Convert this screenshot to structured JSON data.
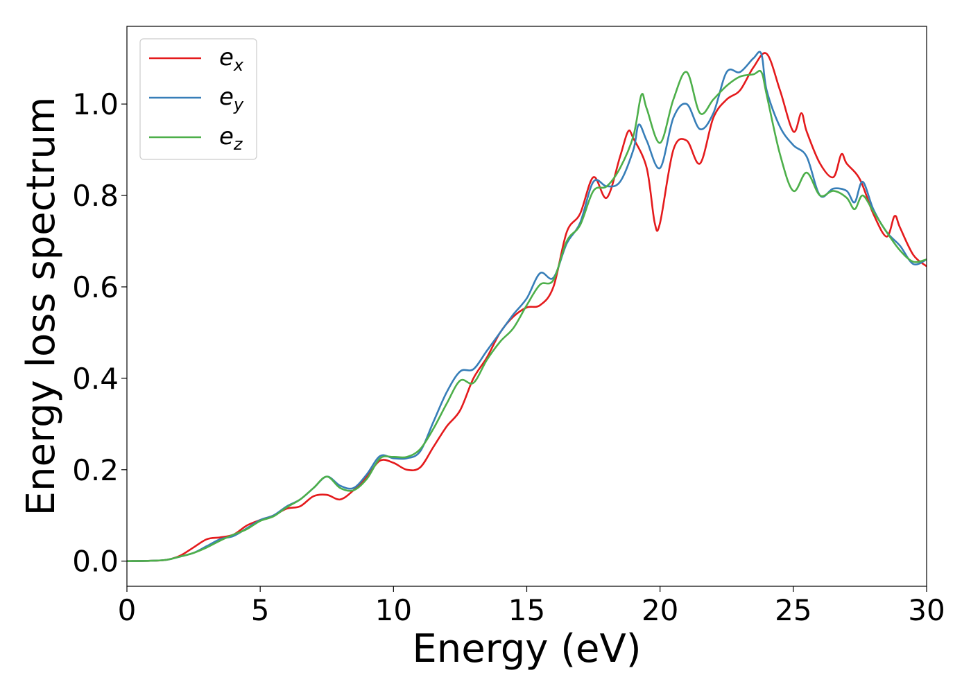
{
  "chart_data": {
    "type": "line",
    "xlabel": "Energy (eV)",
    "ylabel": "Energy loss spectrum",
    "xlim": [
      0,
      30
    ],
    "ylim": [
      -0.055,
      1.17
    ],
    "xticks": [
      "0",
      "5",
      "10",
      "15",
      "20",
      "25",
      "30"
    ],
    "xtick_values": [
      0,
      5,
      10,
      15,
      20,
      25,
      30
    ],
    "yticks": [
      "0.0",
      "0.2",
      "0.4",
      "0.6",
      "0.8",
      "1.0"
    ],
    "ytick_values": [
      0.0,
      0.2,
      0.4,
      0.6,
      0.8,
      1.0
    ],
    "grid": false,
    "legend_position": "top-left",
    "series": [
      {
        "name": "e_x",
        "legend_base": "e",
        "legend_sub": "x",
        "color": "#e41a1c",
        "points": [
          [
            0,
            0
          ],
          [
            1,
            0.001
          ],
          [
            1.5,
            0.003
          ],
          [
            2,
            0.012
          ],
          [
            2.5,
            0.03
          ],
          [
            3,
            0.048
          ],
          [
            3.5,
            0.052
          ],
          [
            4,
            0.058
          ],
          [
            4.5,
            0.078
          ],
          [
            5,
            0.09
          ],
          [
            5.5,
            0.1
          ],
          [
            6,
            0.115
          ],
          [
            6.5,
            0.12
          ],
          [
            7,
            0.142
          ],
          [
            7.5,
            0.145
          ],
          [
            8,
            0.135
          ],
          [
            8.5,
            0.155
          ],
          [
            9,
            0.185
          ],
          [
            9.5,
            0.22
          ],
          [
            10,
            0.215
          ],
          [
            10.5,
            0.2
          ],
          [
            11,
            0.205
          ],
          [
            11.5,
            0.25
          ],
          [
            12,
            0.295
          ],
          [
            12.5,
            0.33
          ],
          [
            13,
            0.4
          ],
          [
            13.5,
            0.445
          ],
          [
            14,
            0.5
          ],
          [
            14.5,
            0.535
          ],
          [
            15,
            0.555
          ],
          [
            15.5,
            0.56
          ],
          [
            16,
            0.6
          ],
          [
            16.5,
            0.72
          ],
          [
            17,
            0.76
          ],
          [
            17.5,
            0.84
          ],
          [
            18,
            0.795
          ],
          [
            18.5,
            0.885
          ],
          [
            18.8,
            0.94
          ],
          [
            19,
            0.925
          ],
          [
            19.5,
            0.86
          ],
          [
            19.8,
            0.74
          ],
          [
            20,
            0.74
          ],
          [
            20.5,
            0.9
          ],
          [
            21,
            0.92
          ],
          [
            21.5,
            0.87
          ],
          [
            22,
            0.97
          ],
          [
            22.5,
            1.01
          ],
          [
            23,
            1.03
          ],
          [
            23.5,
            1.08
          ],
          [
            24,
            1.11
          ],
          [
            24.5,
            1.03
          ],
          [
            25,
            0.94
          ],
          [
            25.3,
            0.98
          ],
          [
            25.5,
            0.94
          ],
          [
            26,
            0.87
          ],
          [
            26.5,
            0.84
          ],
          [
            26.8,
            0.89
          ],
          [
            27,
            0.87
          ],
          [
            27.5,
            0.835
          ],
          [
            28,
            0.76
          ],
          [
            28.5,
            0.71
          ],
          [
            28.8,
            0.755
          ],
          [
            29,
            0.73
          ],
          [
            29.5,
            0.67
          ],
          [
            30,
            0.645
          ]
        ]
      },
      {
        "name": "e_y",
        "legend_base": "e",
        "legend_sub": "y",
        "color": "#377eb8",
        "points": [
          [
            0,
            0
          ],
          [
            1,
            0.001
          ],
          [
            1.5,
            0.003
          ],
          [
            2,
            0.01
          ],
          [
            2.5,
            0.018
          ],
          [
            3,
            0.033
          ],
          [
            3.5,
            0.048
          ],
          [
            4,
            0.055
          ],
          [
            4.5,
            0.072
          ],
          [
            5,
            0.09
          ],
          [
            5.5,
            0.1
          ],
          [
            6,
            0.12
          ],
          [
            6.5,
            0.135
          ],
          [
            7,
            0.16
          ],
          [
            7.5,
            0.185
          ],
          [
            8,
            0.165
          ],
          [
            8.5,
            0.16
          ],
          [
            9,
            0.19
          ],
          [
            9.5,
            0.23
          ],
          [
            10,
            0.225
          ],
          [
            10.5,
            0.225
          ],
          [
            11,
            0.24
          ],
          [
            11.5,
            0.305
          ],
          [
            12,
            0.37
          ],
          [
            12.5,
            0.415
          ],
          [
            13,
            0.42
          ],
          [
            13.5,
            0.46
          ],
          [
            14,
            0.5
          ],
          [
            14.5,
            0.54
          ],
          [
            15,
            0.575
          ],
          [
            15.5,
            0.63
          ],
          [
            16,
            0.62
          ],
          [
            16.5,
            0.695
          ],
          [
            17,
            0.74
          ],
          [
            17.5,
            0.83
          ],
          [
            18,
            0.82
          ],
          [
            18.5,
            0.83
          ],
          [
            19,
            0.9
          ],
          [
            19.2,
            0.955
          ],
          [
            19.5,
            0.92
          ],
          [
            20,
            0.86
          ],
          [
            20.5,
            0.97
          ],
          [
            21,
            1.0
          ],
          [
            21.5,
            0.945
          ],
          [
            22,
            0.98
          ],
          [
            22.5,
            1.07
          ],
          [
            23,
            1.07
          ],
          [
            23.5,
            1.1
          ],
          [
            23.8,
            1.11
          ],
          [
            24,
            1.03
          ],
          [
            24.5,
            0.95
          ],
          [
            25,
            0.91
          ],
          [
            25.5,
            0.885
          ],
          [
            26,
            0.8
          ],
          [
            26.5,
            0.815
          ],
          [
            27,
            0.81
          ],
          [
            27.3,
            0.785
          ],
          [
            27.6,
            0.83
          ],
          [
            28,
            0.77
          ],
          [
            28.5,
            0.72
          ],
          [
            29,
            0.69
          ],
          [
            29.5,
            0.65
          ],
          [
            30,
            0.66
          ]
        ]
      },
      {
        "name": "e_z",
        "legend_base": "e",
        "legend_sub": "z",
        "color": "#4daf4a",
        "points": [
          [
            0,
            0
          ],
          [
            1,
            0.001
          ],
          [
            1.5,
            0.003
          ],
          [
            2,
            0.01
          ],
          [
            2.5,
            0.018
          ],
          [
            3,
            0.03
          ],
          [
            3.5,
            0.045
          ],
          [
            4,
            0.058
          ],
          [
            4.5,
            0.07
          ],
          [
            5,
            0.088
          ],
          [
            5.5,
            0.098
          ],
          [
            6,
            0.118
          ],
          [
            6.5,
            0.135
          ],
          [
            7,
            0.16
          ],
          [
            7.5,
            0.185
          ],
          [
            8,
            0.16
          ],
          [
            8.5,
            0.155
          ],
          [
            9,
            0.18
          ],
          [
            9.5,
            0.225
          ],
          [
            10,
            0.228
          ],
          [
            10.5,
            0.228
          ],
          [
            11,
            0.245
          ],
          [
            11.5,
            0.29
          ],
          [
            12,
            0.345
          ],
          [
            12.5,
            0.395
          ],
          [
            13,
            0.39
          ],
          [
            13.5,
            0.44
          ],
          [
            14,
            0.48
          ],
          [
            14.5,
            0.51
          ],
          [
            15,
            0.56
          ],
          [
            15.5,
            0.605
          ],
          [
            16,
            0.615
          ],
          [
            16.5,
            0.7
          ],
          [
            17,
            0.735
          ],
          [
            17.5,
            0.81
          ],
          [
            18,
            0.82
          ],
          [
            18.5,
            0.86
          ],
          [
            19,
            0.93
          ],
          [
            19.3,
            1.02
          ],
          [
            19.5,
            0.99
          ],
          [
            20,
            0.915
          ],
          [
            20.5,
            1.01
          ],
          [
            21,
            1.07
          ],
          [
            21.5,
            0.98
          ],
          [
            22,
            1.01
          ],
          [
            22.5,
            1.04
          ],
          [
            23,
            1.06
          ],
          [
            23.5,
            1.065
          ],
          [
            23.8,
            1.07
          ],
          [
            24,
            1.02
          ],
          [
            24.5,
            0.89
          ],
          [
            25,
            0.81
          ],
          [
            25.5,
            0.85
          ],
          [
            26,
            0.8
          ],
          [
            26.5,
            0.81
          ],
          [
            27,
            0.795
          ],
          [
            27.3,
            0.77
          ],
          [
            27.6,
            0.8
          ],
          [
            28,
            0.765
          ],
          [
            28.5,
            0.72
          ],
          [
            29,
            0.68
          ],
          [
            29.5,
            0.655
          ],
          [
            30,
            0.66
          ]
        ]
      }
    ]
  }
}
